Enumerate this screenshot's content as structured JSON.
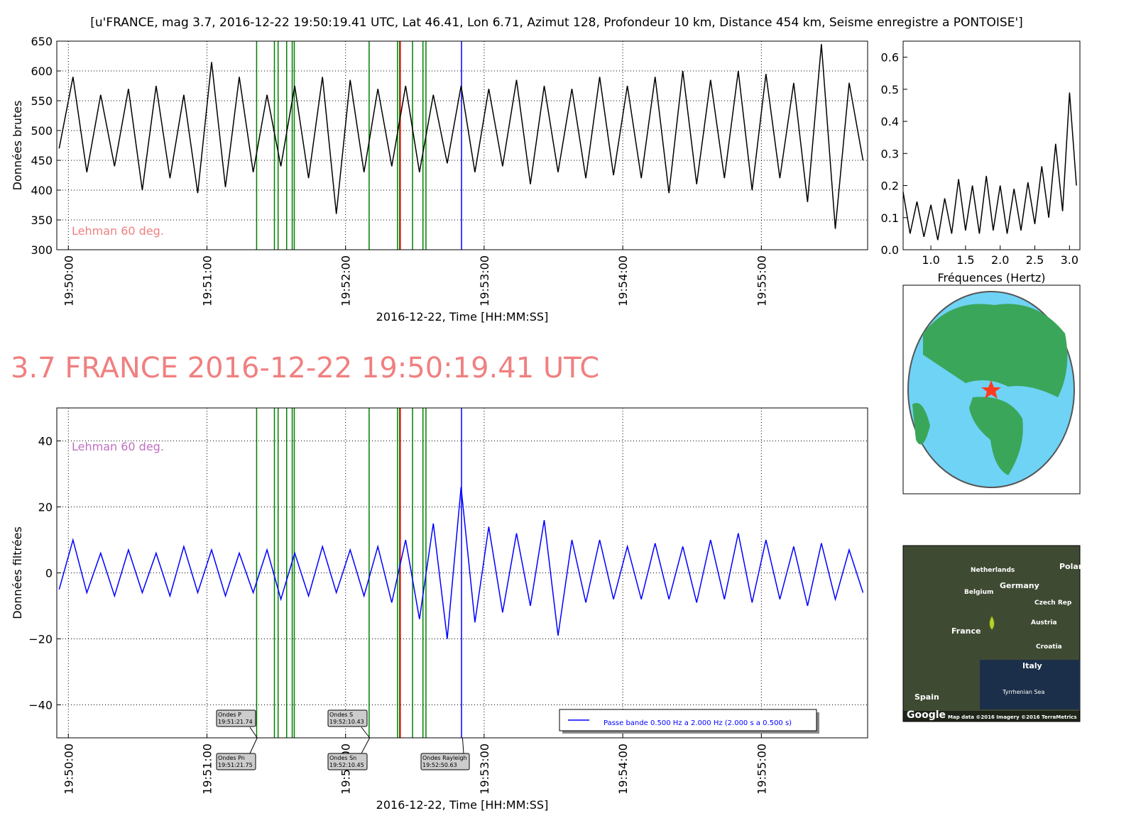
{
  "chart_data": [
    {
      "type": "line",
      "title": "[u'FRANCE, mag 3.7, 2016-12-22 19:50:19.41 UTC, Lat 46.41, Lon 6.71, Azimut 128, Profondeur 10 km, Distance   454 km, Seisme enregistre a PONTOISE']",
      "ylabel": "Données brutes",
      "xlabel": "2016-12-22, Time [HH:MM:SS]",
      "annotation": "Lehman 60 deg.",
      "annotation_color": "#f08080",
      "color": "#000000",
      "grid": true,
      "xlim": [
        -5,
        346
      ],
      "ylim": [
        300,
        650
      ],
      "xticks": [
        {
          "value": 0,
          "label": "19:50:00"
        },
        {
          "value": 60,
          "label": "19:51:00"
        },
        {
          "value": 120,
          "label": "19:52:00"
        },
        {
          "value": 180,
          "label": "19:53:00"
        },
        {
          "value": 240,
          "label": "19:54:00"
        },
        {
          "value": 300,
          "label": "19:55:00"
        }
      ],
      "yticks": [
        300,
        350,
        400,
        450,
        500,
        550,
        600,
        650
      ],
      "x": [
        -4,
        2,
        8,
        14,
        20,
        26,
        32,
        38,
        44,
        50,
        56,
        62,
        68,
        74,
        80,
        86,
        92,
        98,
        104,
        110,
        116,
        122,
        128,
        134,
        140,
        146,
        152,
        158,
        164,
        170,
        176,
        182,
        188,
        194,
        200,
        206,
        212,
        218,
        224,
        230,
        236,
        242,
        248,
        254,
        260,
        266,
        272,
        278,
        284,
        290,
        296,
        302,
        308,
        314,
        320,
        326,
        332,
        338,
        344
      ],
      "values": [
        470,
        590,
        430,
        560,
        440,
        570,
        400,
        575,
        420,
        560,
        395,
        615,
        405,
        590,
        430,
        560,
        440,
        575,
        420,
        590,
        360,
        585,
        430,
        570,
        440,
        575,
        430,
        560,
        445,
        575,
        430,
        570,
        440,
        585,
        410,
        575,
        430,
        570,
        420,
        590,
        425,
        575,
        420,
        590,
        395,
        600,
        410,
        585,
        420,
        600,
        400,
        595,
        420,
        580,
        380,
        645,
        335,
        580,
        450
      ]
    },
    {
      "type": "line",
      "xlabel": "Fréquences (Hertz)",
      "color": "#000000",
      "grid": false,
      "xlim": [
        0.6,
        3.15
      ],
      "ylim": [
        0,
        0.65
      ],
      "xticks": [
        {
          "value": 1,
          "label": "1.0"
        },
        1.5,
        {
          "value": 2,
          "label": "2.0"
        },
        2.5,
        {
          "value": 3,
          "label": "3.0"
        }
      ],
      "yticks": [
        {
          "value": 0,
          "label": "0.0"
        },
        0.1,
        0.2,
        0.3,
        0.4,
        0.5,
        0.6
      ],
      "x": [
        0.6,
        0.7,
        0.8,
        0.9,
        1.0,
        1.1,
        1.2,
        1.3,
        1.4,
        1.5,
        1.6,
        1.7,
        1.8,
        1.9,
        2.0,
        2.1,
        2.2,
        2.3,
        2.4,
        2.5,
        2.6,
        2.7,
        2.8,
        2.9,
        3.0,
        3.1
      ],
      "values": [
        0.18,
        0.05,
        0.15,
        0.04,
        0.14,
        0.03,
        0.16,
        0.05,
        0.22,
        0.06,
        0.2,
        0.05,
        0.23,
        0.06,
        0.2,
        0.05,
        0.19,
        0.06,
        0.21,
        0.08,
        0.26,
        0.1,
        0.33,
        0.12,
        0.49,
        0.2
      ]
    },
    {
      "type": "line",
      "title": "3.7 FRANCE 2016-12-22 19:50:19.41 UTC",
      "ylabel": "Données filtrées",
      "xlabel": "2016-12-22, Time [HH:MM:SS]",
      "annotation": "Lehman 60 deg.",
      "annotation_color": "#c070c0",
      "color": "#0000ff",
      "grid": true,
      "xlim": [
        -5,
        346
      ],
      "ylim": [
        -50,
        50
      ],
      "legend": "Passe bande 0.500 Hz a 2.000 Hz (2.000 s a 0.500 s)",
      "xticks": [
        {
          "value": 0,
          "label": "19:50:00"
        },
        {
          "value": 60,
          "label": "19:51:00"
        },
        {
          "value": 120,
          "label": "19:52:00"
        },
        {
          "value": 180,
          "label": "19:53:00"
        },
        {
          "value": 240,
          "label": "19:54:00"
        },
        {
          "value": 300,
          "label": "19:55:00"
        }
      ],
      "yticks": [
        {
          "value": -40,
          "label": "−40"
        },
        {
          "value": -20,
          "label": "−20"
        },
        0,
        20,
        40
      ],
      "x": [
        -4,
        2,
        8,
        14,
        20,
        26,
        32,
        38,
        44,
        50,
        56,
        62,
        68,
        74,
        80,
        86,
        92,
        98,
        104,
        110,
        116,
        122,
        128,
        134,
        140,
        146,
        152,
        158,
        164,
        170,
        176,
        182,
        188,
        194,
        200,
        206,
        212,
        218,
        224,
        230,
        236,
        242,
        248,
        254,
        260,
        266,
        272,
        278,
        284,
        290,
        296,
        302,
        308,
        314,
        320,
        326,
        332,
        338,
        344
      ],
      "values": [
        -5,
        10,
        -6,
        6,
        -7,
        7,
        -6,
        6,
        -7,
        8,
        -6,
        7,
        -7,
        6,
        -6,
        7,
        -8,
        6,
        -7,
        8,
        -6,
        7,
        -7,
        8,
        -9,
        10,
        -14,
        15,
        -20,
        26,
        -15,
        14,
        -12,
        12,
        -10,
        16,
        -19,
        10,
        -9,
        10,
        -8,
        8,
        -8,
        9,
        -8,
        8,
        -9,
        10,
        -8,
        12,
        -9,
        10,
        -8,
        8,
        -10,
        9,
        -8,
        7,
        -6
      ],
      "phase_labels": [
        {
          "name": "Ondes P",
          "time": "19:51:21.74",
          "x": 81.74
        },
        {
          "name": "Ondes Pn",
          "time": "19:51:21.75",
          "x": 81.75
        },
        {
          "name": "Ondes S",
          "time": "19:52:10.43",
          "x": 130.43
        },
        {
          "name": "Ondes Sn",
          "time": "19:52:10.45",
          "x": 130.45
        },
        {
          "name": "Ondes Rayleigh",
          "time": "19:52:50.63",
          "x": 170.63
        }
      ]
    }
  ],
  "phases": [
    {
      "x": 81.5,
      "color": "#008000"
    },
    {
      "x": 89.2,
      "color": "#008000"
    },
    {
      "x": 90.8,
      "color": "#008000"
    },
    {
      "x": 94.5,
      "color": "#008000"
    },
    {
      "x": 96.9,
      "color": "#008000"
    },
    {
      "x": 97.8,
      "color": "#008000"
    },
    {
      "x": 130.2,
      "color": "#008000"
    },
    {
      "x": 142.5,
      "color": "#008000"
    },
    {
      "x": 143.4,
      "color": "#008000"
    },
    {
      "x": 143.7,
      "color": "#ff0000"
    },
    {
      "x": 149,
      "color": "#008000"
    },
    {
      "x": 153.5,
      "color": "#008000"
    },
    {
      "x": 154.8,
      "color": "#008000"
    },
    {
      "x": 170.2,
      "color": "#0000ff"
    }
  ],
  "map": {
    "labels": [
      "Netherlands",
      "Germany",
      "Belgium",
      "Polan",
      "Czech Rep",
      "France",
      "Austria",
      "Croatia",
      "Italy",
      "Spain",
      "Tyrrhenian Sea",
      "Google",
      "Map data ©2016  Imagery ©2016 TerraMetrics"
    ]
  }
}
